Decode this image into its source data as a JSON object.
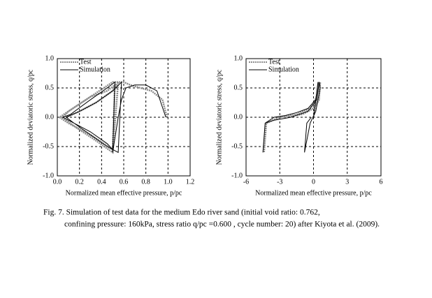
{
  "chart_data": [
    {
      "type": "line",
      "xlabel": "Normalized mean effective pressure, p/pc",
      "ylabel": "Normalized deviatoric stress, q/pc",
      "xlim": [
        0,
        1.2
      ],
      "xticks": [
        {
          "value": 0,
          "label": "0.0"
        },
        0.2,
        0.4,
        0.6,
        0.8,
        {
          "value": 1,
          "label": "1.0"
        },
        1.2
      ],
      "ylim": [
        -1,
        1
      ],
      "yticks": [
        {
          "value": -1,
          "label": "-1.0"
        },
        -0.5,
        {
          "value": 0,
          "label": "0.0"
        },
        0.5,
        {
          "value": 1,
          "label": "1.0"
        }
      ],
      "grid": true,
      "legend": "upper left",
      "series": [
        {
          "name": "Test",
          "color": "#8c8c8c",
          "x": [
            0.99,
            0.95,
            0.85,
            0.75,
            0.66,
            0.6,
            0.55,
            0.5,
            0.3,
            0.1,
            0.02,
            0.1,
            0.3,
            0.5,
            0.52,
            0.45,
            0.3,
            0.1,
            0.05,
            0.15,
            0.35,
            0.5,
            0.55,
            0.5,
            0.35,
            0.2,
            0.08
          ],
          "values": [
            0.0,
            0.3,
            0.45,
            0.5,
            0.55,
            0.6,
            0.6,
            0.6,
            0.35,
            0.1,
            0.0,
            -0.1,
            -0.3,
            -0.55,
            0.55,
            0.45,
            0.35,
            0.1,
            0.0,
            -0.15,
            -0.4,
            -0.6,
            0.6,
            0.45,
            0.25,
            0.1,
            0.0
          ]
        },
        {
          "name": "Simulation",
          "color": "#000000",
          "x": [
            0.98,
            0.9,
            0.8,
            0.7,
            0.62,
            0.58,
            0.55,
            0.5,
            0.52,
            0.45,
            0.3,
            0.12,
            0.05,
            0.15,
            0.3,
            0.45,
            0.55,
            0.58,
            0.5,
            0.35,
            0.2,
            0.08,
            0.15,
            0.3,
            0.45,
            0.5
          ],
          "values": [
            0.0,
            0.45,
            0.55,
            0.55,
            0.5,
            0.3,
            0.0,
            -0.6,
            0.6,
            0.5,
            0.3,
            0.05,
            0.0,
            -0.1,
            -0.3,
            -0.5,
            -0.6,
            0.6,
            0.45,
            0.25,
            0.1,
            0.0,
            -0.1,
            -0.25,
            -0.45,
            -0.55
          ]
        }
      ]
    },
    {
      "type": "line",
      "xlabel": "Normalized mean effective pressure, p/pc",
      "ylabel": "Normalized deviatoric stress, q/pc",
      "xlim": [
        -6,
        6
      ],
      "xticks": [
        -6,
        -3,
        0,
        3,
        6
      ],
      "ylim": [
        -1,
        1
      ],
      "yticks": [
        {
          "value": -1,
          "label": "-1.0"
        },
        -0.5,
        {
          "value": 0,
          "label": "0.0"
        },
        0.5,
        {
          "value": 1,
          "label": "1.0"
        }
      ],
      "grid": true,
      "legend": "upper left",
      "series": [
        {
          "name": "Test",
          "color": "#8c8c8c",
          "x": [
            0,
            0.5,
            0.3,
            -0.3,
            -1.5,
            -3,
            -4.2,
            -4.4,
            -4.2,
            -3,
            -1,
            0,
            0.6,
            0.5,
            0.2
          ],
          "values": [
            0,
            0.6,
            0.35,
            0.15,
            0.05,
            0,
            -0.1,
            -0.6,
            -0.1,
            0,
            0.05,
            0.15,
            0.6,
            0.3,
            0.2
          ]
        },
        {
          "name": "Simulation",
          "color": "#000000",
          "x": [
            0,
            0.4,
            0.2,
            -0.5,
            -1.5,
            -2.5,
            -3.5,
            -4.3,
            -4.5,
            -4.3,
            -3.5,
            -2,
            -0.5,
            0.3,
            0.5,
            0.6,
            0.2,
            -0.3,
            -0.8,
            -0.6,
            -0.2
          ],
          "values": [
            0,
            0.6,
            0.3,
            0.15,
            0.08,
            0.03,
            0,
            -0.1,
            -0.6,
            -0.1,
            -0.05,
            0,
            0.1,
            0.3,
            0.6,
            0.5,
            0.1,
            -0.1,
            -0.6,
            -0.1,
            0
          ]
        }
      ]
    }
  ],
  "caption": {
    "lines": [
      "Fig. 7. Simulation of test data for the medium Edo river sand (initial void ratio: 0.762,",
      "confining pressure: 160kPa, stress ratio q/pc =0.600 , cycle number: 20) after Kiyota et al. (2009)."
    ]
  }
}
